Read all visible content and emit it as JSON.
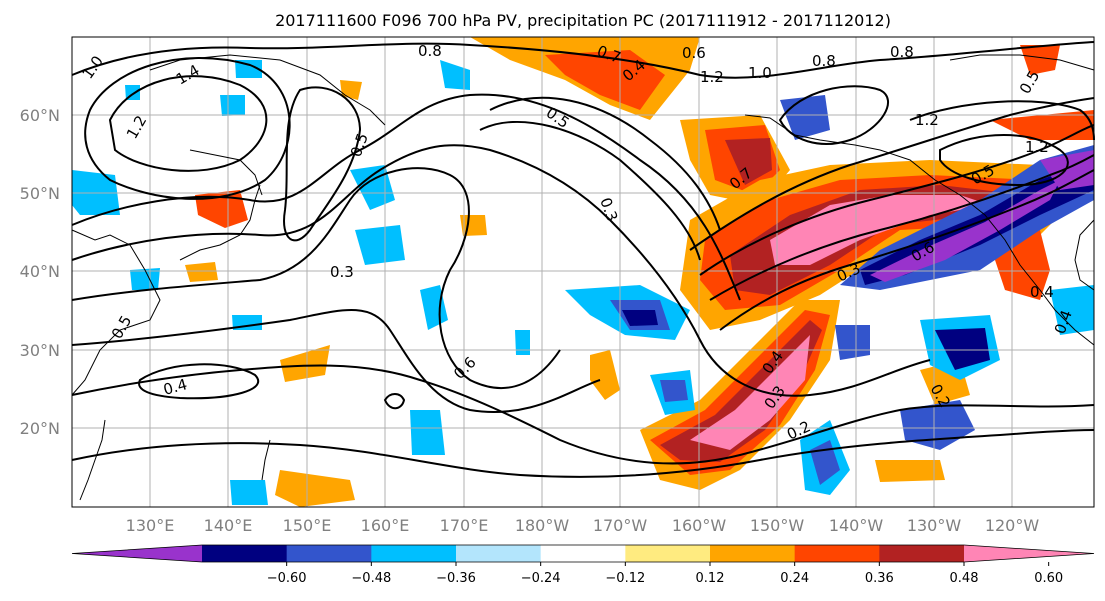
{
  "title": "2017111600 F096 700 hPa PV, precipitation PC (2017111912 - 2017112012)",
  "lat_labels": [
    "60°N",
    "50°N",
    "40°N",
    "30°N",
    "20°N"
  ],
  "lon_labels": [
    "130°E",
    "140°E",
    "150°E",
    "160°E",
    "170°E",
    "180°W",
    "170°W",
    "160°W",
    "150°W",
    "140°W",
    "130°W",
    "120°W"
  ],
  "colorbar": {
    "ticks": [
      "−0.60",
      "−0.48",
      "−0.36",
      "−0.24",
      "−0.12",
      "0.12",
      "0.24",
      "0.36",
      "0.48",
      "0.60"
    ],
    "colors": [
      "#9933cc",
      "#000080",
      "#3355cc",
      "#00bfff",
      "#b3e5fc",
      "#ffffff",
      "#ffeb80",
      "#ffa500",
      "#ff4500",
      "#b22222",
      "#ff85b5"
    ]
  },
  "contour_labels": [
    "0.8",
    "1.0",
    "1.4",
    "1.2",
    "0.7",
    "0.6",
    "0.4",
    "1.2",
    "1.0",
    "0.8",
    "0.8",
    "1.2",
    "1.2",
    "0.5",
    "0.3",
    "0.7",
    "0.3",
    "0.6",
    "0.5",
    "0.4",
    "0.3",
    "0.2",
    "0.4",
    "0.6",
    "0.5",
    "0.3",
    "0.4",
    "0.2",
    "0.4",
    "0.5",
    "0.5"
  ]
}
